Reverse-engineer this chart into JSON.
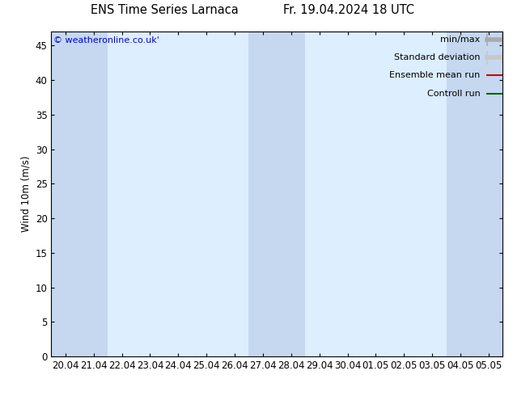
{
  "title_left": "ENS Time Series Larnaca",
  "title_right": "Fr. 19.04.2024 18 UTC",
  "ylabel": "Wind 10m (m/s)",
  "watermark": "© weatheronline.co.uk'",
  "x_labels": [
    "20.04",
    "21.04",
    "22.04",
    "23.04",
    "24.04",
    "25.04",
    "26.04",
    "27.04",
    "28.04",
    "29.04",
    "30.04",
    "01.05",
    "02.05",
    "03.05",
    "04.05",
    "05.05"
  ],
  "ylim": [
    0,
    47
  ],
  "yticks": [
    0,
    5,
    10,
    15,
    20,
    25,
    30,
    35,
    40,
    45
  ],
  "bg_color": "#ffffff",
  "plot_bg_color": "#ddeeff",
  "shaded_columns": [
    0,
    1,
    7,
    8,
    14,
    15
  ],
  "shaded_color": "#c5d8f0",
  "legend_items": [
    {
      "label": "min/max",
      "color": "#aaaaaa",
      "type": "hbar"
    },
    {
      "label": "Standard deviation",
      "color": "#c8c8c8",
      "type": "hbar"
    },
    {
      "label": "Ensemble mean run",
      "color": "#cc0000",
      "type": "line"
    },
    {
      "label": "Controll run",
      "color": "#006600",
      "type": "line"
    }
  ],
  "tick_color": "#000000",
  "font_size": 8.5,
  "title_font_size": 10.5
}
